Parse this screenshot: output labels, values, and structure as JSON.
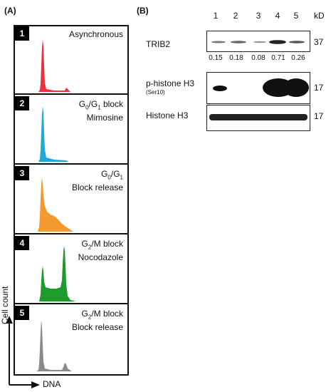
{
  "panel_a_label": "(A)",
  "panel_b_label": "(B)",
  "facs": {
    "panels": [
      {
        "number": "1",
        "line1": "Asynchronous",
        "line2": "",
        "color": "#e8323c"
      },
      {
        "number": "2",
        "line1": "G0/G1 block",
        "line2": "Mimosine",
        "color": "#22a8d8"
      },
      {
        "number": "3",
        "line1": "G0/G1",
        "line2": "Block release",
        "color": "#f39a2e"
      },
      {
        "number": "4",
        "line1": "G2/M block",
        "line2": "Nocodazole",
        "color": "#1f9a2c"
      },
      {
        "number": "5",
        "line1": "G2/M block",
        "line2": "Block release",
        "color": "#8a8a8a"
      }
    ],
    "y_axis_label": "Cell count",
    "x_axis_label": "DNA"
  },
  "western": {
    "lanes": [
      "1",
      "2",
      "3",
      "4",
      "5"
    ],
    "kd_label": "kD",
    "rows": [
      {
        "label": "TRIB2",
        "sublabel": "",
        "kd": "37",
        "quant": [
          "0.15",
          "0.18",
          "0.08",
          "0.71",
          "0.26"
        ]
      },
      {
        "label": "p-histone H3",
        "sublabel": "(Ser10)",
        "kd": "17"
      },
      {
        "label": "Histone H3",
        "sublabel": "",
        "kd": "17"
      }
    ]
  }
}
